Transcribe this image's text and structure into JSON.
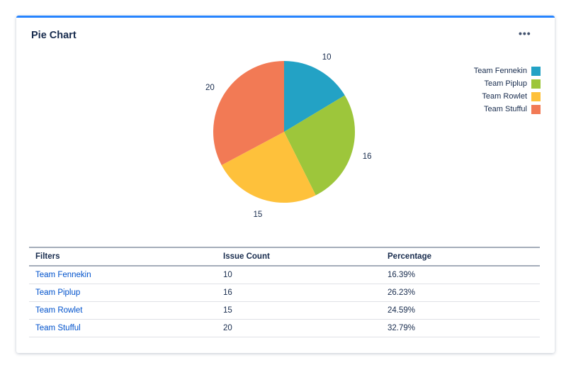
{
  "title": "Pie Chart",
  "menu_icon": "more-horizontal-icon",
  "chart_data": {
    "type": "pie",
    "categories": [
      "Team Fennekin",
      "Team Piplup",
      "Team Rowlet",
      "Team Stufful"
    ],
    "values": [
      10,
      16,
      15,
      20
    ],
    "colors": [
      "#23a2c5",
      "#9dc63b",
      "#fec13b",
      "#f27a55"
    ],
    "start_angle": "12 o'clock, clockwise",
    "legend_position": "top-right"
  },
  "table": {
    "headers": [
      "Filters",
      "Issue Count",
      "Percentage"
    ],
    "rows": [
      [
        "Team Fennekin",
        "10",
        "16.39%"
      ],
      [
        "Team Piplup",
        "16",
        "26.23%"
      ],
      [
        "Team Rowlet",
        "15",
        "24.59%"
      ],
      [
        "Team Stufful",
        "20",
        "32.79%"
      ]
    ]
  }
}
